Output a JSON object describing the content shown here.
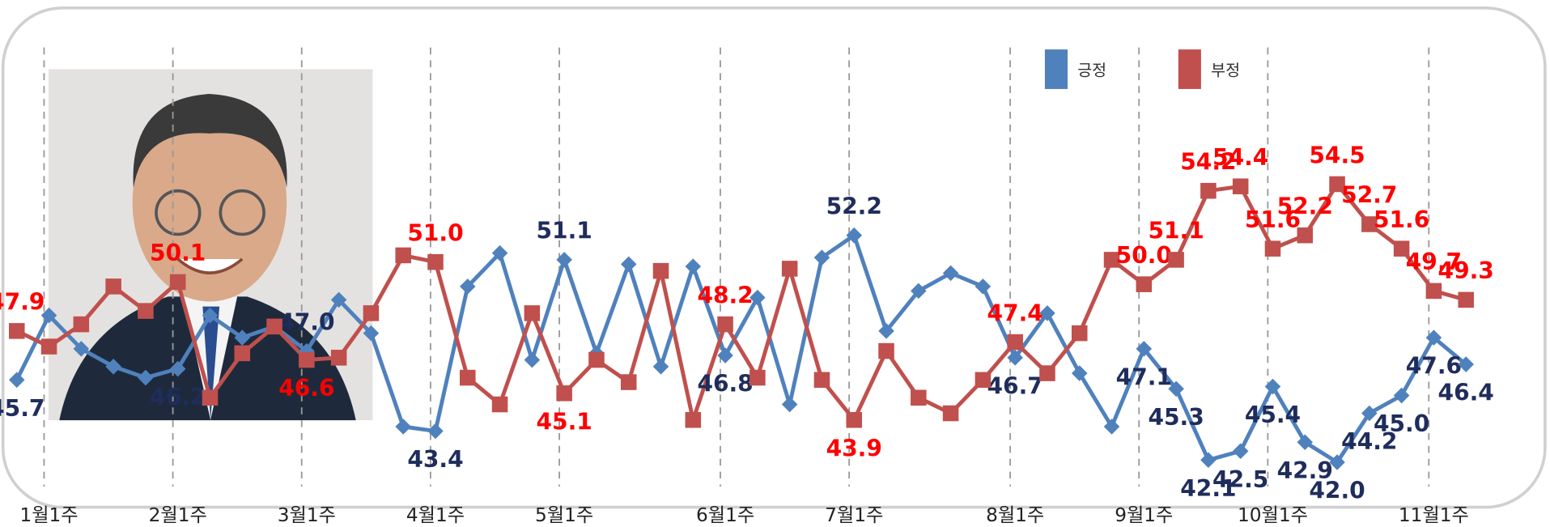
{
  "chart_data": {
    "type": "line",
    "categories": [
      null,
      "1월1주",
      null,
      null,
      null,
      "2월1주",
      null,
      null,
      null,
      "3월1주",
      null,
      null,
      null,
      "4월1주",
      null,
      null,
      null,
      "5월1주",
      null,
      null,
      null,
      null,
      "6월1주",
      null,
      null,
      null,
      "7월1주",
      null,
      null,
      null,
      null,
      "8월1주",
      null,
      null,
      null,
      "9월1주",
      null,
      null,
      null,
      "10월1주",
      null,
      null,
      null,
      null,
      "11월1주",
      null
    ],
    "series": [
      {
        "name": "긍정",
        "color": "#4f81bd",
        "marker": "diamond",
        "label_color": "#1f2d5c",
        "values": [
          45.7,
          48.6,
          47.1,
          46.3,
          45.8,
          46.2,
          48.6,
          47.6,
          48.1,
          47.0,
          49.3,
          47.8,
          43.6,
          43.4,
          49.9,
          51.4,
          46.6,
          51.1,
          46.9,
          50.9,
          46.3,
          50.8,
          46.8,
          49.4,
          44.6,
          51.2,
          52.2,
          47.9,
          49.7,
          50.5,
          49.9,
          46.7,
          48.7,
          46.0,
          43.6,
          47.1,
          45.3,
          42.1,
          42.5,
          45.4,
          42.9,
          42.0,
          44.2,
          45.0,
          47.6,
          46.4
        ],
        "value_labels": [
          "45.7",
          null,
          null,
          null,
          null,
          "46.2",
          null,
          null,
          null,
          "47.0",
          null,
          null,
          null,
          "43.4",
          null,
          null,
          null,
          "51.1",
          null,
          null,
          null,
          null,
          "46.8",
          null,
          null,
          null,
          "52.2",
          null,
          null,
          null,
          null,
          "46.7",
          null,
          null,
          null,
          "47.1",
          "45.3",
          "42.1",
          "42.5",
          "45.4",
          "42.9",
          "42.0",
          "44.2",
          "45.0",
          "47.6",
          "46.4"
        ]
      },
      {
        "name": "부정",
        "color": "#c0504d",
        "marker": "square",
        "label_color": "#ff0000",
        "values": [
          47.9,
          47.2,
          48.2,
          49.9,
          48.8,
          50.1,
          44.9,
          46.9,
          48.1,
          46.6,
          46.7,
          48.7,
          51.3,
          51.0,
          45.8,
          44.6,
          48.7,
          45.1,
          46.6,
          45.6,
          50.6,
          43.9,
          48.2,
          45.8,
          50.7,
          45.7,
          43.9,
          47.0,
          44.9,
          44.2,
          45.7,
          47.4,
          46.0,
          47.8,
          51.1,
          50.0,
          51.1,
          54.2,
          54.4,
          51.6,
          52.2,
          54.5,
          52.7,
          51.6,
          49.7,
          49.3
        ],
        "value_labels": [
          "47.9",
          null,
          null,
          null,
          null,
          "50.1",
          null,
          null,
          null,
          "46.6",
          null,
          null,
          null,
          "51.0",
          null,
          null,
          null,
          "45.1",
          null,
          null,
          null,
          null,
          "48.2",
          null,
          null,
          null,
          "43.9",
          null,
          null,
          null,
          null,
          "47.4",
          null,
          null,
          null,
          "50.0",
          "51.1",
          "54.2",
          "54.4",
          "51.6",
          "52.2",
          "54.5",
          "52.7",
          "51.6",
          "49.7",
          "49.3"
        ]
      }
    ],
    "ylim": [
      40,
      56
    ],
    "legend": "top-right"
  }
}
